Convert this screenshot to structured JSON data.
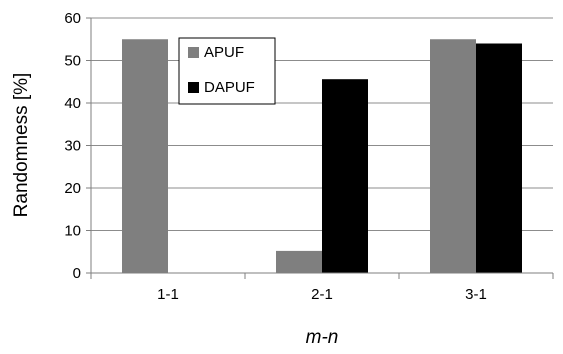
{
  "chart_data": {
    "type": "bar",
    "categories": [
      "1-1",
      "2-1",
      "3-1"
    ],
    "series": [
      {
        "name": "APUF",
        "values": [
          55,
          5.2,
          55
        ],
        "color": "#7f7f7f"
      },
      {
        "name": "DAPUF",
        "values": [
          0,
          45.6,
          54
        ],
        "color": "#000000"
      }
    ],
    "xlabel": "m-n",
    "ylabel": "Randomness [%]",
    "ylim": [
      0,
      60
    ],
    "yticks": [
      0,
      10,
      20,
      30,
      40,
      50,
      60
    ],
    "grid": true,
    "legend_placement": "top-center"
  }
}
